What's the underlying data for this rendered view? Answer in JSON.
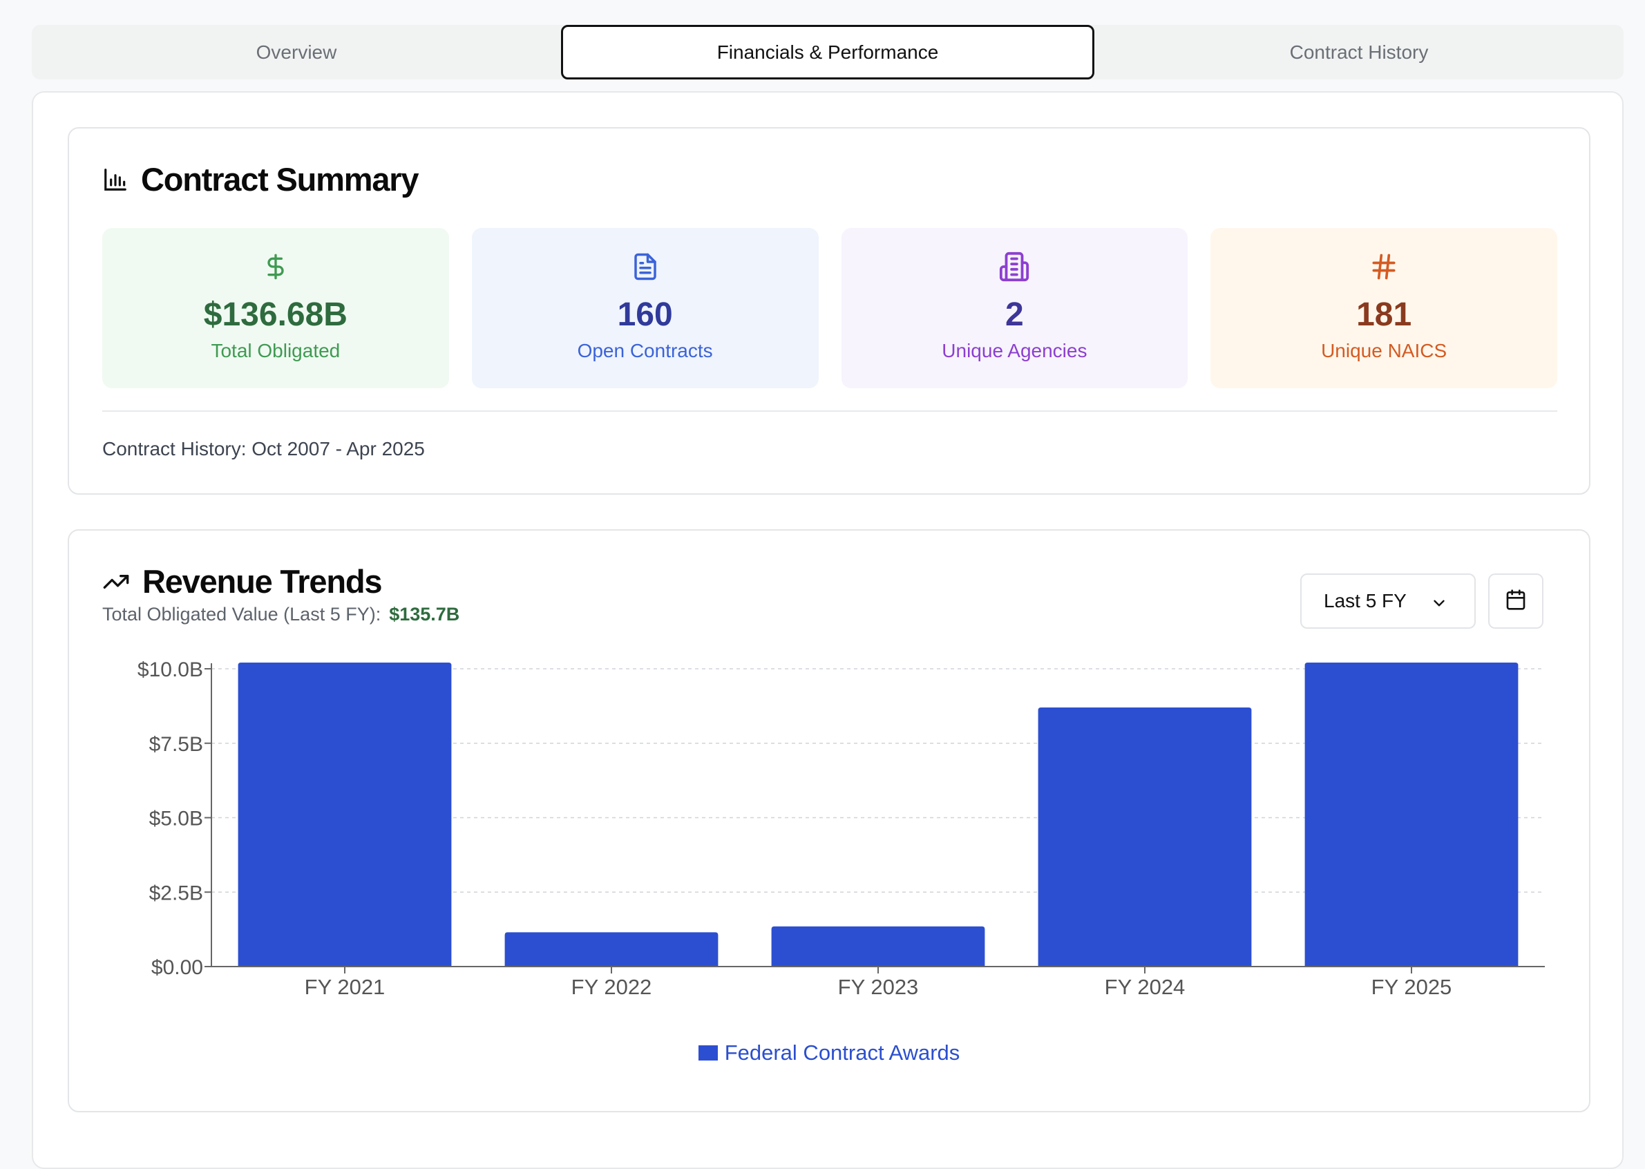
{
  "tabs": [
    {
      "label": "Overview",
      "active": false
    },
    {
      "label": "Financials & Performance",
      "active": true
    },
    {
      "label": "Contract History",
      "active": false
    }
  ],
  "summary": {
    "title": "Contract Summary",
    "title_icon": "bar-chart-icon",
    "stats": [
      {
        "icon": "dollar-icon",
        "value": "$136.68B",
        "label": "Total Obligated",
        "color": "#3f9a52"
      },
      {
        "icon": "document-icon",
        "value": "160",
        "label": "Open Contracts",
        "color": "#3b63d8"
      },
      {
        "icon": "building-icon",
        "value": "2",
        "label": "Unique Agencies",
        "color": "#8d3fd0"
      },
      {
        "icon": "hash-icon",
        "value": "181",
        "label": "Unique NAICS",
        "color": "#d45b22"
      }
    ],
    "history_text": "Contract History: Oct 2007 - Apr 2025"
  },
  "revenue": {
    "title": "Revenue Trends",
    "title_icon": "trending-up-icon",
    "subtitle_label": "Total Obligated Value (Last 5 FY):",
    "subtitle_value": "$135.7B",
    "range_select": "Last 5 FY",
    "calendar_icon": "calendar-icon"
  },
  "chart_data": {
    "type": "bar",
    "categories": [
      "FY 2021",
      "FY 2022",
      "FY 2023",
      "FY 2024",
      "FY 2025"
    ],
    "series": [
      {
        "name": "Federal Contract Awards",
        "values": [
          10.0,
          1.15,
          1.35,
          8.7,
          10.0
        ],
        "color": "#2c4fd1"
      }
    ],
    "y_ticks": [
      "$0.00",
      "$2.5B",
      "$5.0B",
      "$7.5B",
      "$10.0B"
    ],
    "y_tick_values": [
      0,
      2.5,
      5.0,
      7.5,
      10.0
    ],
    "ylim": [
      0,
      10.0
    ],
    "y_unit": "billions USD",
    "grid": true,
    "legend_position": "bottom"
  }
}
